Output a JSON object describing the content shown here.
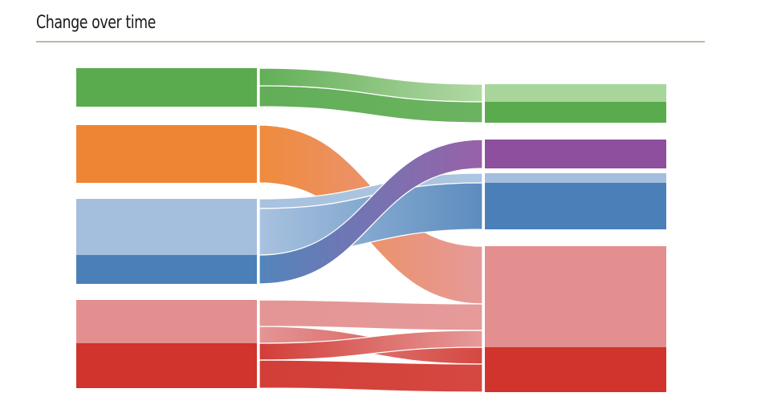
{
  "chart_data": {
    "type": "sankey",
    "title": "Change over time",
    "left_nodes": [
      {
        "id": "G",
        "color": "#5aaa4e"
      },
      {
        "id": "O",
        "color": "#ee8533"
      },
      {
        "id": "LB",
        "color": "#a3bfdd"
      },
      {
        "id": "DB",
        "color": "#4a7fb8"
      },
      {
        "id": "LR",
        "color": "#e38f8f"
      },
      {
        "id": "DR",
        "color": "#d0342c"
      }
    ],
    "right_nodes": [
      {
        "id": "LG",
        "color": "#a8d59a"
      },
      {
        "id": "DG",
        "color": "#5aaa4e"
      },
      {
        "id": "P",
        "color": "#8e4f9e"
      },
      {
        "id": "LBr",
        "color": "#a3bfdd"
      },
      {
        "id": "B",
        "color": "#4a7fb8"
      },
      {
        "id": "LRr",
        "color": "#e38f8f"
      },
      {
        "id": "DRr",
        "color": "#d0342c"
      }
    ],
    "flows": [
      {
        "from": "G",
        "to": "LG",
        "value": 22
      },
      {
        "from": "G",
        "to": "DG",
        "value": 26
      },
      {
        "from": "O",
        "to": "LRr",
        "value": 72
      },
      {
        "from": "LB",
        "to": "LBr",
        "value": 12
      },
      {
        "from": "LB",
        "to": "B",
        "value": 58
      },
      {
        "from": "DB",
        "to": "P",
        "value": 36
      },
      {
        "from": "LR",
        "to": "LRr",
        "value": 33
      },
      {
        "from": "LR",
        "to": "DRr",
        "value": 21
      },
      {
        "from": "DR",
        "to": "LRr",
        "value": 21
      },
      {
        "from": "DR",
        "to": "DRr",
        "value": 35
      }
    ]
  }
}
